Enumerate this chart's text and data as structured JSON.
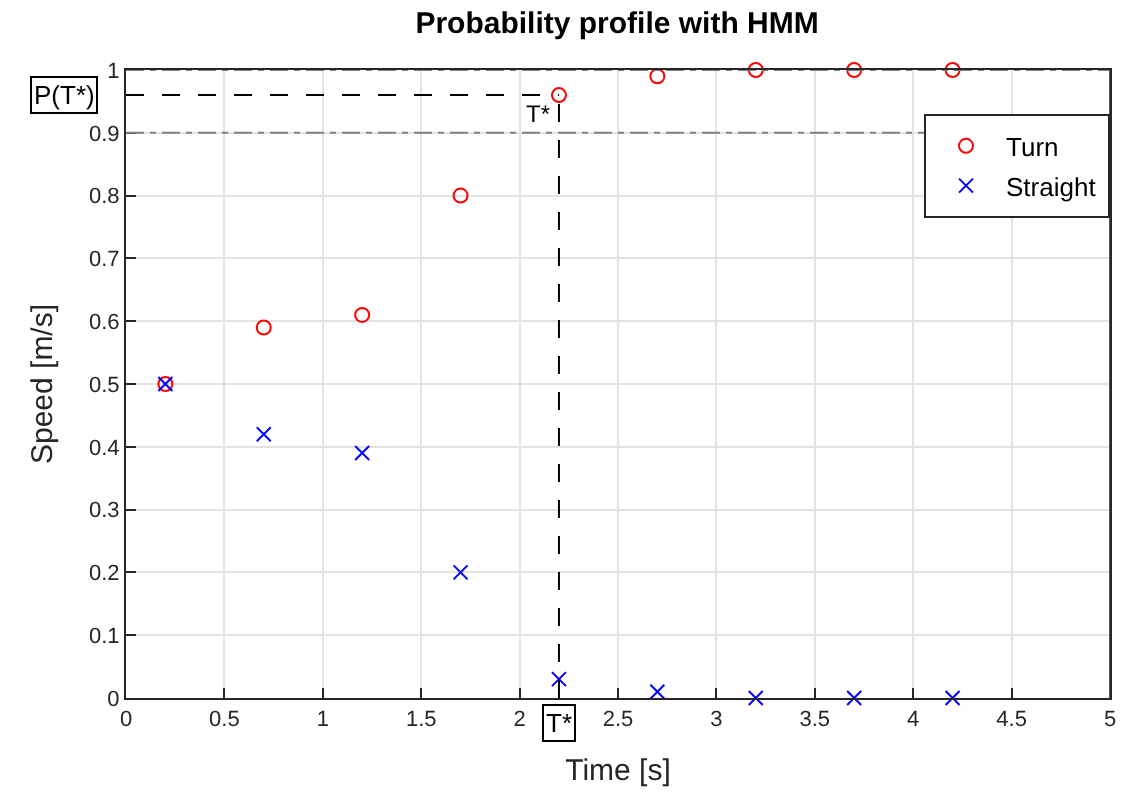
{
  "chart_data": {
    "type": "scatter",
    "title": "Probability profile with HMM",
    "xlabel": "Time [s]",
    "ylabel": "Speed [m/s]",
    "x": [
      0.2,
      0.7,
      1.2,
      1.7,
      2.2,
      2.7,
      3.2,
      3.7,
      4.2
    ],
    "series": [
      {
        "name": "Turn",
        "color": "#ff0000",
        "marker": "circle",
        "values": [
          0.5,
          0.59,
          0.61,
          0.8,
          0.96,
          0.99,
          1.0,
          1.0,
          1.0
        ]
      },
      {
        "name": "Straight",
        "color": "#0000ff",
        "marker": "cross",
        "values": [
          0.5,
          0.42,
          0.39,
          0.2,
          0.03,
          0.01,
          0,
          0,
          0
        ]
      }
    ],
    "xlim": [
      0,
      5
    ],
    "xticks": [
      0,
      0.5,
      1,
      1.5,
      2,
      2.5,
      3,
      3.5,
      4,
      4.5,
      5
    ],
    "ylim": [
      0,
      1
    ],
    "yticks": [
      0,
      0.1,
      0.2,
      0.3,
      0.4,
      0.5,
      0.6,
      0.7,
      0.8,
      0.9,
      1
    ],
    "ref_lines": [
      {
        "axis": "y",
        "value": 1,
        "color": "#808080",
        "line_style": "dashdot"
      },
      {
        "axis": "y",
        "value": 0.9,
        "color": "#808080",
        "line_style": "dashdot"
      },
      {
        "axis": "y",
        "value": 0.96,
        "label": "P(T*)",
        "color": "#000000",
        "line_style": "dashed"
      },
      {
        "axis": "x",
        "value": 2.2,
        "label": "T*",
        "color": "#000000",
        "line_style": "dashed"
      },
      {
        "axis": "x",
        "value": 5,
        "color": "#0072bd",
        "line_style": "solid"
      }
    ],
    "annotations": [
      {
        "text": "T*",
        "x": 2.2,
        "y": 0.93
      }
    ],
    "grid": true,
    "legend": "top right"
  }
}
